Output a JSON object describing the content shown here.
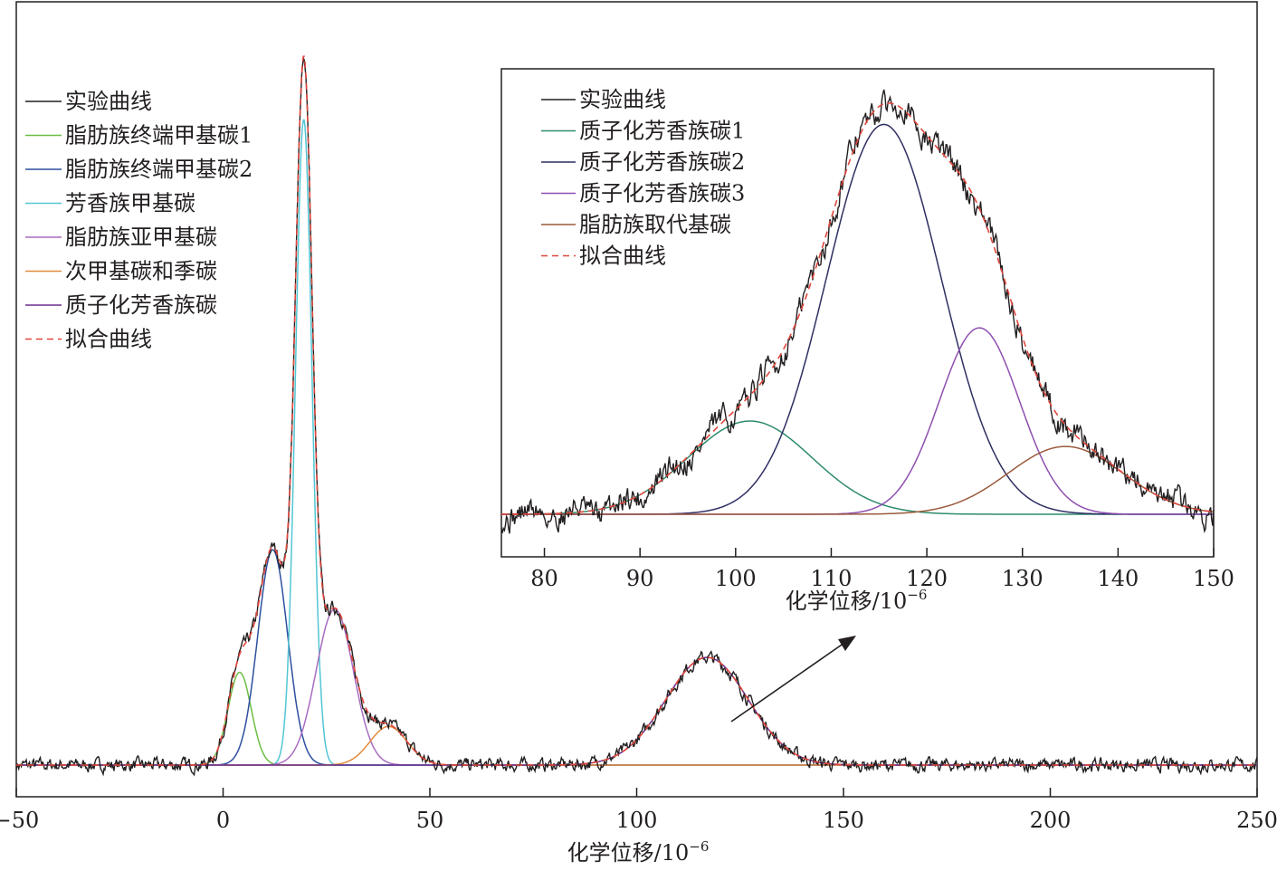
{
  "chart_data": [
    {
      "type": "line",
      "xlabel": "化学位移/10",
      "xlabel_sup": "−6",
      "ylabel": "",
      "xlim": [
        -50,
        250
      ],
      "xticks": [
        -50,
        0,
        50,
        100,
        150,
        200,
        250
      ],
      "xtick_labels": [
        "−50",
        "0",
        "50",
        "100",
        "150",
        "200",
        "250"
      ],
      "y_axis_visible": false,
      "grid": false,
      "legend_position": "top-left",
      "legend": [
        {
          "name": "实验曲线",
          "color": "#231f20",
          "style": "solid"
        },
        {
          "name": "脂肪族终端甲基碳1",
          "color": "#6cbd45",
          "style": "solid"
        },
        {
          "name": "脂肪族终端甲基碳2",
          "color": "#2d4f9e",
          "style": "solid"
        },
        {
          "name": "芳香族甲基碳",
          "color": "#52c6d3",
          "style": "solid"
        },
        {
          "name": "脂肪族亚甲基碳",
          "color": "#a86cc1",
          "style": "solid"
        },
        {
          "name": "次甲基碳和季碳",
          "color": "#e08a3c",
          "style": "solid"
        },
        {
          "name": "质子化芳香族碳",
          "color": "#6a2c8e",
          "style": "solid"
        },
        {
          "name": "拟合曲线",
          "color": "#e0463c",
          "style": "dashed"
        }
      ],
      "components": [
        {
          "name": "脂肪族终端甲基碳1",
          "center": 4,
          "height": 0.125,
          "width": 2.8
        },
        {
          "name": "脂肪族终端甲基碳2",
          "center": 12,
          "height": 0.29,
          "width": 3.6
        },
        {
          "name": "芳香族甲基碳",
          "center": 19.5,
          "height": 0.87,
          "width": 2.0
        },
        {
          "name": "脂肪族亚甲基碳",
          "center": 27,
          "height": 0.21,
          "width": 4.5
        },
        {
          "name": "次甲基碳和季碳",
          "center": 40,
          "height": 0.052,
          "width": 4.5
        },
        {
          "name": "质子化芳香族碳",
          "center": 117,
          "height": 0.145,
          "width": 10
        }
      ]
    },
    {
      "type": "line",
      "xlabel": "化学位移/10",
      "xlabel_sup": "−6",
      "ylabel": "",
      "xlim": [
        75.5,
        150
      ],
      "xticks": [
        80,
        90,
        100,
        110,
        120,
        130,
        140,
        150
      ],
      "xtick_labels": [
        "80",
        "90",
        "100",
        "110",
        "120",
        "130",
        "140",
        "150"
      ],
      "y_axis_visible": false,
      "grid": false,
      "legend_position": "top-left",
      "legend": [
        {
          "name": "实验曲线",
          "color": "#231f20",
          "style": "solid"
        },
        {
          "name": "质子化芳香族碳1",
          "color": "#2e8b6e",
          "style": "solid"
        },
        {
          "name": "质子化芳香族碳2",
          "color": "#2f2f63",
          "style": "solid"
        },
        {
          "name": "质子化芳香族碳3",
          "color": "#8e4fb0",
          "style": "solid"
        },
        {
          "name": "脂肪族取代基碳",
          "color": "#9b5a3c",
          "style": "solid"
        },
        {
          "name": "拟合曲线",
          "color": "#e0463c",
          "style": "dashed"
        }
      ],
      "components": [
        {
          "name": "质子化芳香族碳1",
          "center": 101.5,
          "height": 0.22,
          "width": 6.5
        },
        {
          "name": "质子化芳香族碳2",
          "center": 115.5,
          "height": 0.92,
          "width": 6.0
        },
        {
          "name": "质子化芳香族碳3",
          "center": 125.5,
          "height": 0.44,
          "width": 4.2
        },
        {
          "name": "脂肪族取代基碳",
          "center": 134.5,
          "height": 0.16,
          "width": 6.0
        }
      ]
    }
  ]
}
